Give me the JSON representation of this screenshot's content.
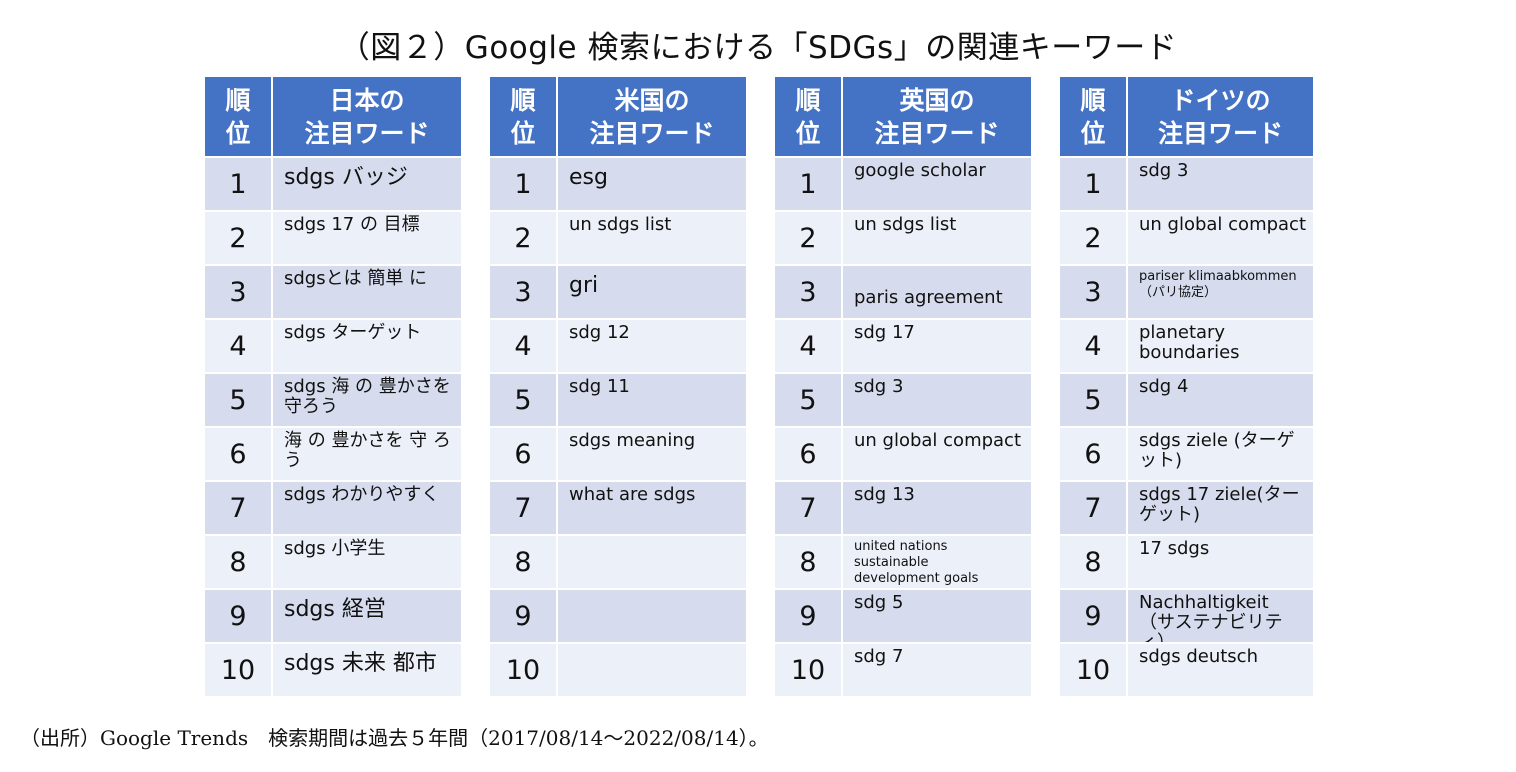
{
  "title": "（図２）Google 検索における「SDGs」の関連キーワード",
  "header_rank": "順\n位",
  "tables": [
    {
      "header": "日本の\n注目ワード",
      "rows": [
        {
          "rank": "1",
          "word": "sdgs バッジ"
        },
        {
          "rank": "2",
          "word": "sdgs 17 の 目標"
        },
        {
          "rank": "3",
          "word": "sdgsとは 簡単 に"
        },
        {
          "rank": "4",
          "word": "sdgs ターゲット"
        },
        {
          "rank": "5",
          "word": "sdgs 海 の 豊かさを\n守ろう"
        },
        {
          "rank": "6",
          "word": "海 の 豊かさを 守 ろ\nう"
        },
        {
          "rank": "7",
          "word": "sdgs わかりやすく"
        },
        {
          "rank": "8",
          "word": "sdgs 小学生"
        },
        {
          "rank": "9",
          "word": "sdgs 経営"
        },
        {
          "rank": "10",
          "word": "sdgs 未来 都市"
        }
      ]
    },
    {
      "header": "米国の\n注目ワード",
      "rows": [
        {
          "rank": "1",
          "word": "esg"
        },
        {
          "rank": "2",
          "word": "un sdgs list"
        },
        {
          "rank": "3",
          "word": "gri"
        },
        {
          "rank": "4",
          "word": "sdg 12"
        },
        {
          "rank": "5",
          "word": "sdg 11"
        },
        {
          "rank": "6",
          "word": "sdgs meaning"
        },
        {
          "rank": "7",
          "word": "what are sdgs"
        },
        {
          "rank": "8",
          "word": ""
        },
        {
          "rank": "9",
          "word": ""
        },
        {
          "rank": "10",
          "word": ""
        }
      ]
    },
    {
      "header": "英国の\n注目ワード",
      "rows": [
        {
          "rank": "1",
          "word": "google scholar"
        },
        {
          "rank": "2",
          "word": "un sdgs list"
        },
        {
          "rank": "3",
          "word": "paris agreement"
        },
        {
          "rank": "4",
          "word": "sdg 17"
        },
        {
          "rank": "5",
          "word": "sdg 3"
        },
        {
          "rank": "6",
          "word": "un global compact"
        },
        {
          "rank": "7",
          "word": "sdg 13"
        },
        {
          "rank": "8",
          "word": "united nations sustainable\ndevelopment goals"
        },
        {
          "rank": "9",
          "word": "sdg 5"
        },
        {
          "rank": "10",
          "word": "sdg 7"
        }
      ]
    },
    {
      "header": "ドイツの\n注目ワード",
      "rows": [
        {
          "rank": "1",
          "word": "sdg 3"
        },
        {
          "rank": "2",
          "word": "un global compact"
        },
        {
          "rank": "3",
          "word": "pariser klimaabkommen\n（パリ協定）"
        },
        {
          "rank": "4",
          "word": "planetary\nboundaries"
        },
        {
          "rank": "5",
          "word": "sdg 4"
        },
        {
          "rank": "6",
          "word": "sdgs ziele (ターゲット)"
        },
        {
          "rank": "7",
          "word": "sdgs 17 ziele(ターゲット)"
        },
        {
          "rank": "8",
          "word": "17 sdgs"
        },
        {
          "rank": "9",
          "word": "Nachhaltigkeit\n（サステナビリティ）"
        },
        {
          "rank": "10",
          "word": "sdgs deutsch"
        }
      ]
    }
  ],
  "source_note": "（出所）Google Trends　検索期間は過去５年間（2017/08/14～2022/08/14）。",
  "colors": {
    "header_bg": "#4472c4",
    "row_dark": "#d6dcee",
    "row_light": "#ecf0f8"
  }
}
